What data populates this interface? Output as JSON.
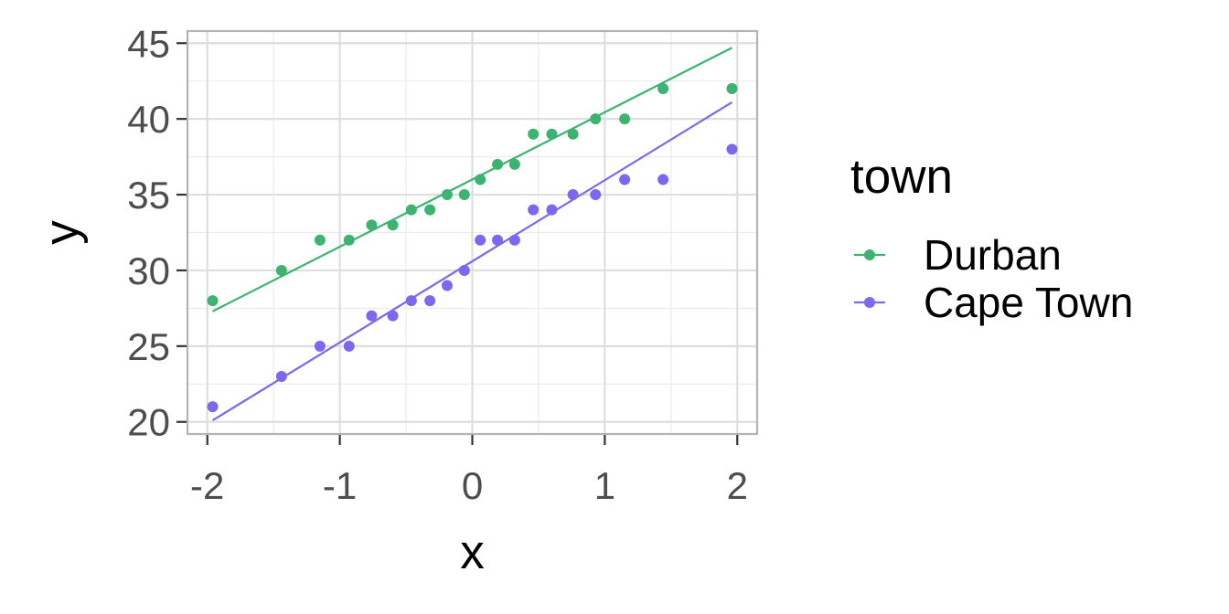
{
  "chart_data": {
    "type": "scatter",
    "title": "",
    "xlabel": "x",
    "ylabel": "y",
    "xlim": [
      -2.15,
      2.15
    ],
    "ylim": [
      19.2,
      45.8
    ],
    "xticks": [
      -2,
      -1,
      0,
      1,
      2
    ],
    "yticks": [
      20,
      25,
      30,
      35,
      40,
      45
    ],
    "grid": true,
    "legend": {
      "title": "town",
      "position": "right"
    },
    "series": [
      {
        "name": "Durban",
        "color": "#3CB371",
        "x": [
          -1.96,
          -1.44,
          -1.15,
          -0.93,
          -0.76,
          -0.6,
          -0.46,
          -0.32,
          -0.19,
          -0.06,
          0.06,
          0.19,
          0.32,
          0.46,
          0.6,
          0.76,
          0.93,
          1.15,
          1.44,
          1.96
        ],
        "y": [
          28,
          30,
          32,
          32,
          33,
          33,
          34,
          34,
          35,
          35,
          36,
          37,
          37,
          39,
          39,
          39,
          40,
          40,
          42,
          42
        ],
        "fit": {
          "x": [
            -1.96,
            1.96
          ],
          "y": [
            27.3,
            44.7
          ]
        }
      },
      {
        "name": "Cape Town",
        "color": "#7B68EE",
        "x": [
          -1.96,
          -1.44,
          -1.15,
          -0.93,
          -0.76,
          -0.6,
          -0.46,
          -0.32,
          -0.19,
          -0.06,
          0.06,
          0.19,
          0.32,
          0.46,
          0.6,
          0.76,
          0.93,
          1.15,
          1.44,
          1.96
        ],
        "y": [
          21,
          23,
          25,
          25,
          27,
          27,
          28,
          28,
          29,
          30,
          32,
          32,
          32,
          34,
          34,
          35,
          35,
          36,
          36,
          38
        ],
        "fit": {
          "x": [
            -1.96,
            1.96
          ],
          "y": [
            20.1,
            41.1
          ]
        }
      }
    ]
  }
}
